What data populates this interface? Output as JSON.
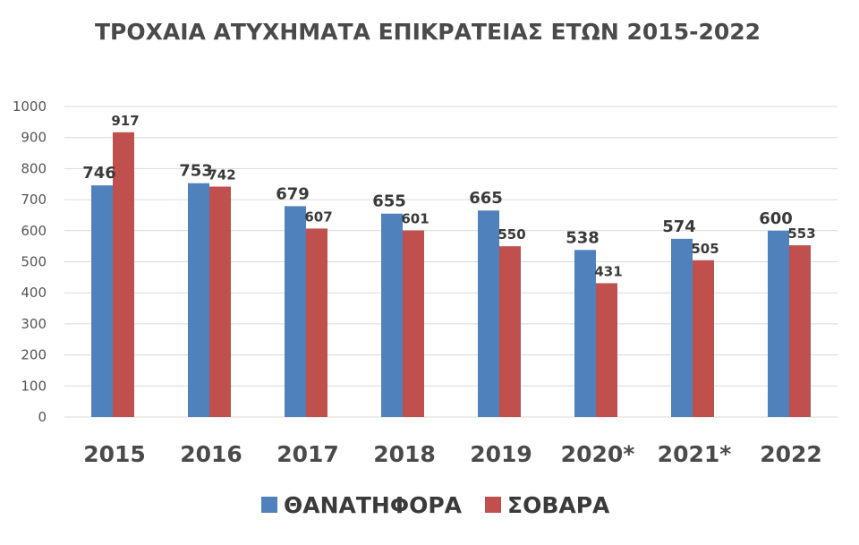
{
  "chart_data": {
    "type": "bar",
    "title": "ΤΡΟΧΑΙΑ ΑΤΥΧΗΜΑΤΑ ΕΠΙΚΡΑΤΕΙΑΣ ΕΤΩΝ 2015-2022",
    "categories": [
      "2015",
      "2016",
      "2017",
      "2018",
      "2019",
      "2020*",
      "2021*",
      "2022"
    ],
    "series": [
      {
        "name": "ΘΑΝΑΤΗΦΟΡΑ",
        "color": "#4f81bd",
        "values": [
          746,
          753,
          679,
          655,
          665,
          538,
          574,
          600
        ]
      },
      {
        "name": "ΣΟΒΑΡΑ",
        "color": "#c0504d",
        "values": [
          917,
          742,
          607,
          601,
          550,
          431,
          505,
          553
        ]
      }
    ],
    "ylim": [
      0,
      1000
    ],
    "yticks": [
      "0",
      "100",
      "200",
      "300",
      "400",
      "500",
      "600",
      "700",
      "800",
      "900",
      "1000"
    ],
    "grid": true,
    "legend_position": "bottom",
    "xlabel": "",
    "ylabel": ""
  }
}
